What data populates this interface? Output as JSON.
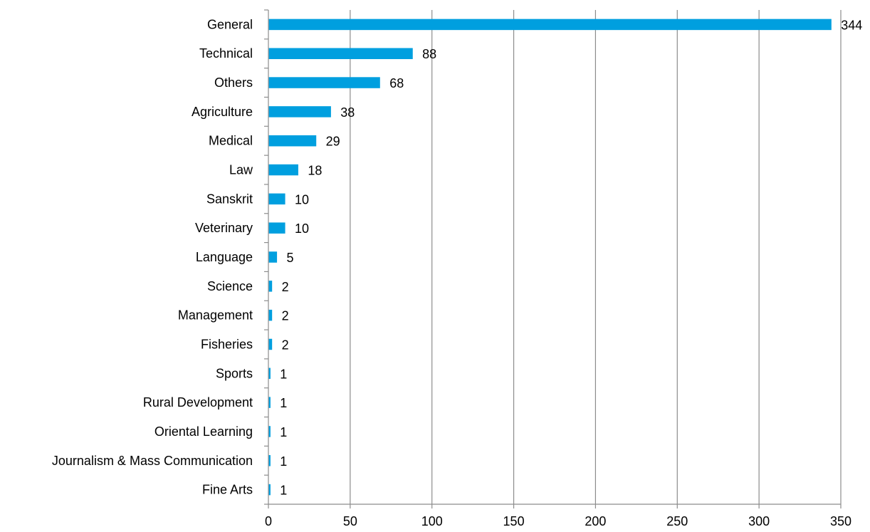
{
  "chart_data": {
    "type": "bar",
    "orientation": "horizontal",
    "categories": [
      "General",
      "Technical",
      "Others",
      "Agriculture",
      "Medical",
      "Law",
      "Sanskrit",
      "Veterinary",
      "Language",
      "Science",
      "Management",
      "Fisheries",
      "Sports",
      "Rural Development",
      "Oriental Learning",
      "Journalism & Mass Communication",
      "Fine Arts"
    ],
    "values": [
      344,
      88,
      68,
      38,
      29,
      18,
      10,
      10,
      5,
      2,
      2,
      2,
      1,
      1,
      1,
      1,
      1
    ],
    "data_labels": [
      "344",
      "88",
      "68",
      "38",
      "29",
      "18",
      "10",
      "10",
      "5",
      "2",
      "2",
      "2",
      "1",
      "1",
      "1",
      "1",
      "1"
    ],
    "title": "",
    "xlabel": "",
    "ylabel": "",
    "xlim": [
      0,
      350
    ],
    "x_ticks": [
      0,
      50,
      100,
      150,
      200,
      250,
      300,
      350
    ],
    "x_tick_labels": [
      "0",
      "50",
      "100",
      "150",
      "200",
      "250",
      "300",
      "350"
    ],
    "grid": "vertical",
    "legend": "none",
    "colors": {
      "bar": "#009FDF",
      "grid": "#8c8c8c",
      "text": "#000000"
    }
  }
}
